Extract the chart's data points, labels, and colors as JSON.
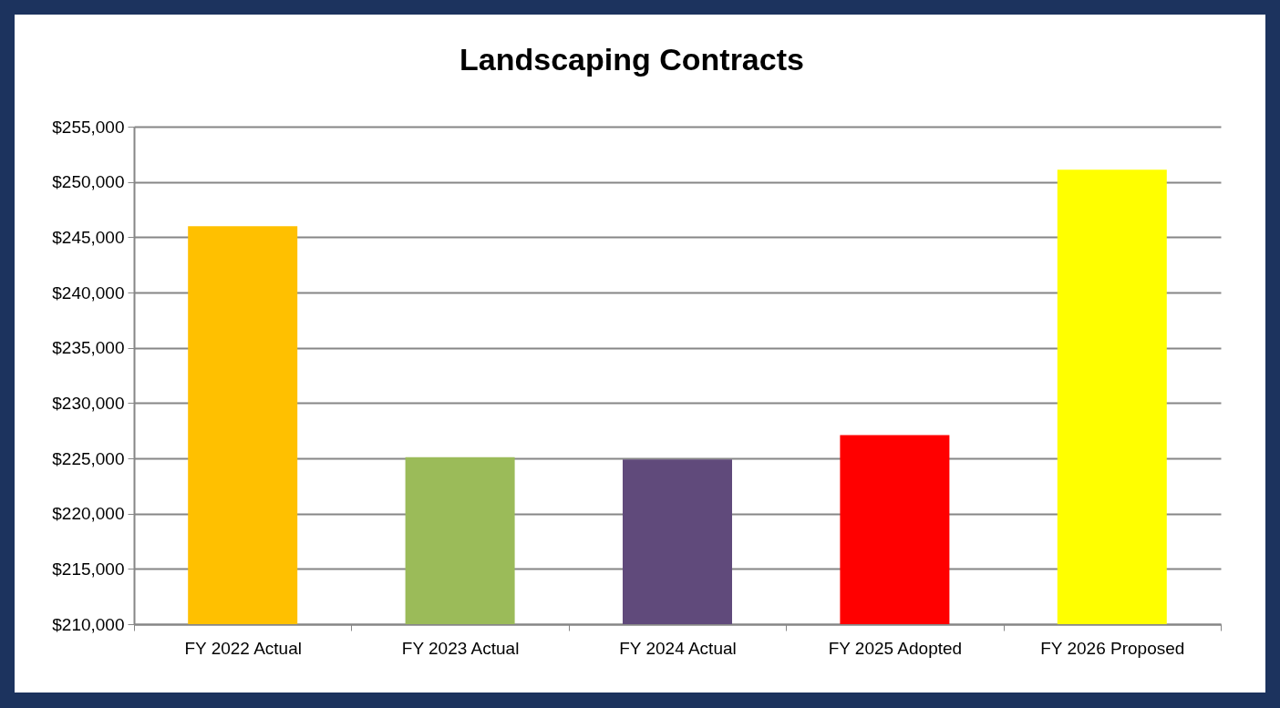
{
  "chart_data": {
    "type": "bar",
    "title": "Landscaping Contracts",
    "categories": [
      "FY 2022 Actual",
      "FY 2023 Actual",
      "FY 2024 Actual",
      "FY 2025 Adopted",
      "FY 2026 Proposed"
    ],
    "values": [
      246000,
      225100,
      224900,
      227100,
      251100
    ],
    "colors": [
      "#ffc000",
      "#9bbb59",
      "#604a7b",
      "#ff0000",
      "#ffff00"
    ],
    "ylim": [
      210000,
      255000
    ],
    "yticks": [
      {
        "value": 210000,
        "label": "$210,000"
      },
      {
        "value": 215000,
        "label": "$215,000"
      },
      {
        "value": 220000,
        "label": "$220,000"
      },
      {
        "value": 225000,
        "label": "$225,000"
      },
      {
        "value": 230000,
        "label": "$230,000"
      },
      {
        "value": 235000,
        "label": "$235,000"
      },
      {
        "value": 240000,
        "label": "$240,000"
      },
      {
        "value": 245000,
        "label": "$245,000"
      },
      {
        "value": 250000,
        "label": "$250,000"
      },
      {
        "value": 255000,
        "label": "$255,000"
      }
    ],
    "grid": "y"
  }
}
